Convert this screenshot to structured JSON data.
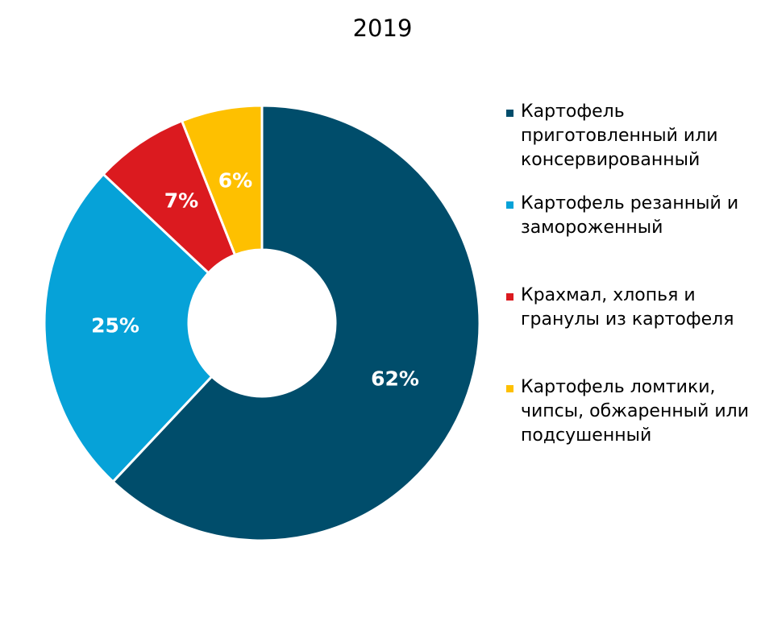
{
  "chart_data": {
    "type": "pie",
    "title": "2019",
    "donut": true,
    "legend_position": "right",
    "slices": [
      {
        "name": "Картофель приготовленный или консервированный",
        "value": 62,
        "label": "62%",
        "color": "#004d6b"
      },
      {
        "name": "Картофель резанный и замороженный",
        "value": 25,
        "label": "25%",
        "color": "#06a2d8"
      },
      {
        "name": "Крахмал, хлопья и гранулы из картофеля",
        "value": 7,
        "label": "7%",
        "color": "#db1a1f"
      },
      {
        "name": "Картофель ломтики, чипсы, обжаренный или подсушенный",
        "value": 6,
        "label": "6%",
        "color": "#fec000"
      }
    ]
  }
}
